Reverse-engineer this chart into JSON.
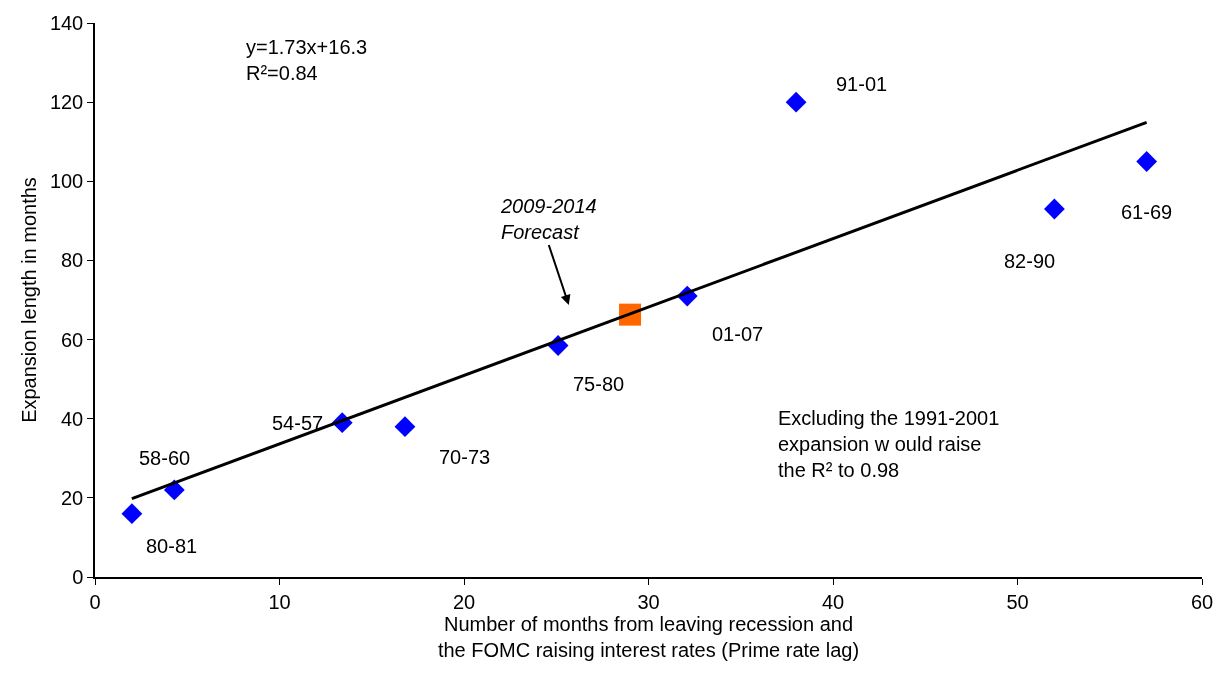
{
  "chart_data": {
    "type": "scatter",
    "xlabel": "Number of months from leaving recession and\nthe FOMC raising interest rates (Prime rate lag)",
    "ylabel": "Expansion length in months",
    "xlim": [
      0,
      60
    ],
    "xticks": [
      0,
      10,
      20,
      30,
      40,
      50,
      60
    ],
    "ylim": [
      0,
      140
    ],
    "yticks": [
      0,
      20,
      40,
      60,
      80,
      100,
      120,
      140
    ],
    "series": [
      {
        "marker": "diamond",
        "color": "#0000ff",
        "x": [
          2,
          4.3,
          13.4,
          16.8,
          25.1,
          32.1,
          38,
          52,
          57
        ],
        "values": [
          16,
          22,
          39,
          38,
          58.5,
          71,
          120,
          93,
          105
        ]
      },
      {
        "marker": "square",
        "color": "#ff6600",
        "x": [
          29
        ],
        "values": [
          66.3
        ]
      },
      {
        "type": "line",
        "marker": "none",
        "color": "#000000",
        "x": [
          2,
          57
        ],
        "values": [
          19.8,
          114.9
        ]
      }
    ],
    "annotations": [
      {
        "text": "80-81",
        "x": 2,
        "y": 16
      },
      {
        "text": "58-60",
        "x": 4.3,
        "y": 22
      },
      {
        "text": "54-57",
        "x": 13.4,
        "y": 39
      },
      {
        "text": "70-73",
        "x": 16.8,
        "y": 38
      },
      {
        "text": "75-80",
        "x": 25.1,
        "y": 58.5
      },
      {
        "text": "01-07",
        "x": 32.1,
        "y": 71
      },
      {
        "text": "91-01",
        "x": 38,
        "y": 120
      },
      {
        "text": "82-90",
        "x": 52,
        "y": 93
      },
      {
        "text": "61-69",
        "x": 57,
        "y": 105
      },
      "2009-2014\nForecast",
      "y=1.73x+16.3\nR²=0.84",
      "Excluding the 1991-2001\nexpansion w ould raise\nthe R² to 0.98"
    ]
  }
}
